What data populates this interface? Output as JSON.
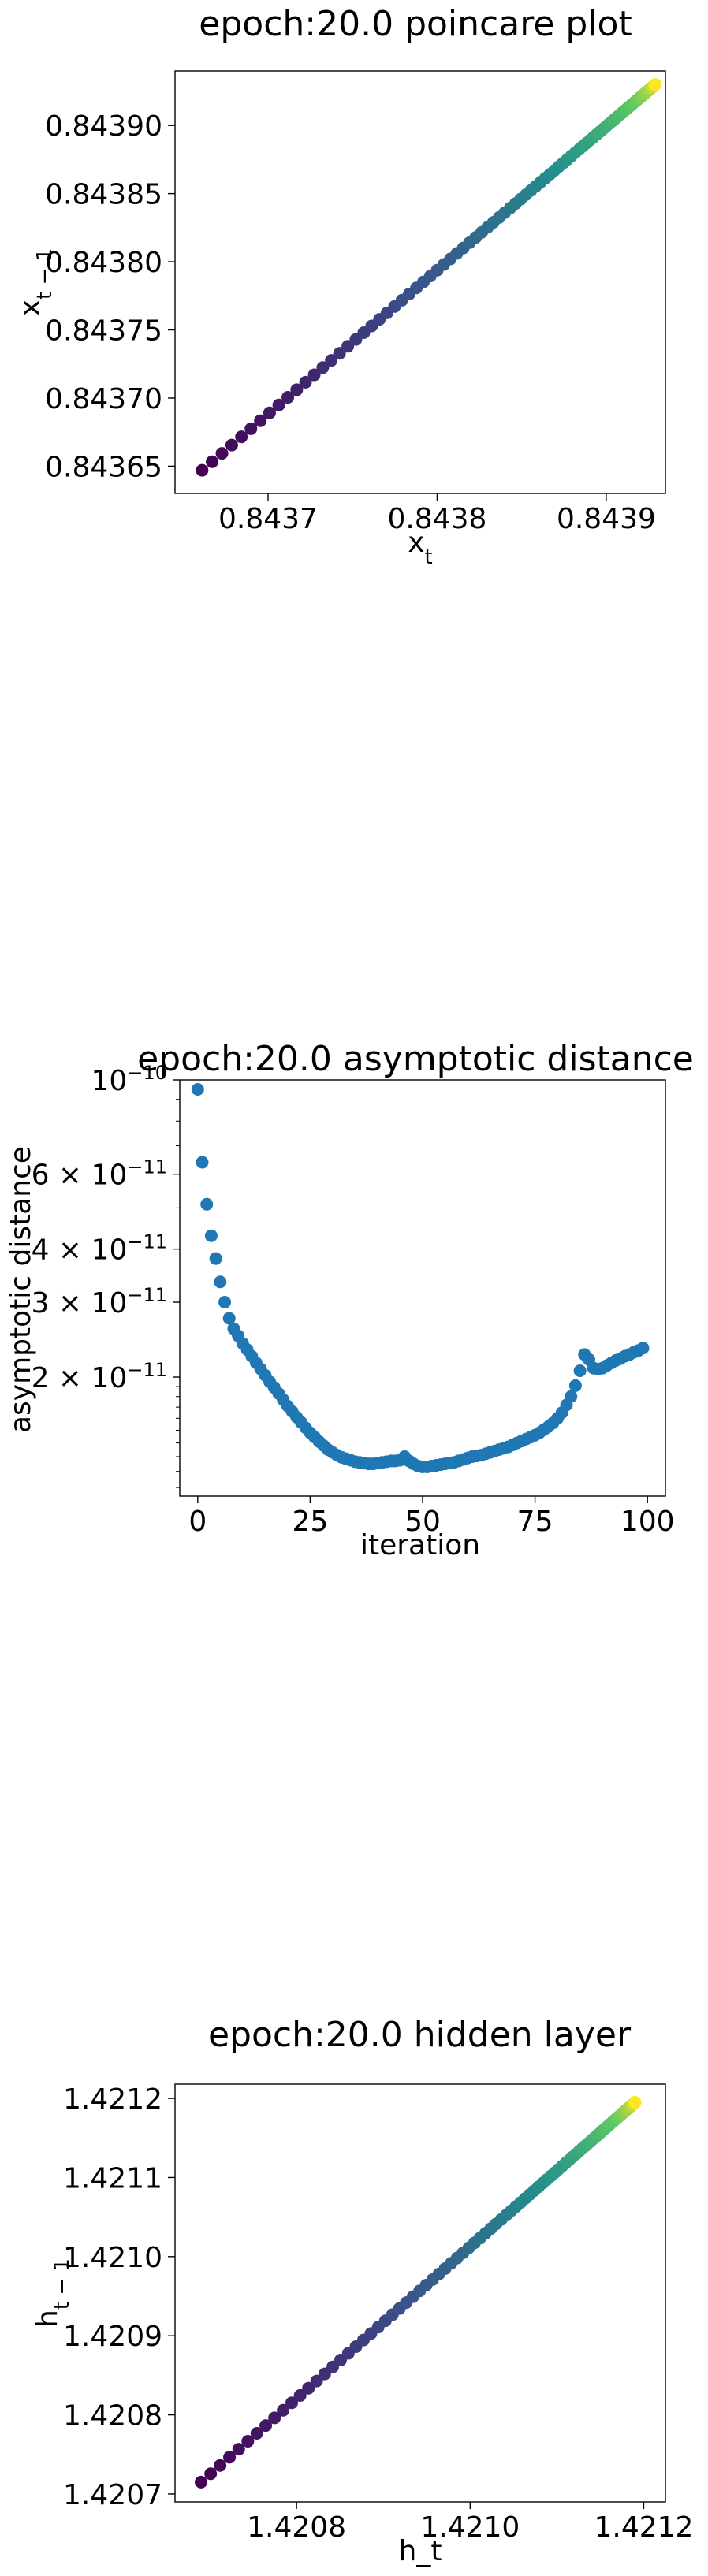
{
  "chart_data": [
    {
      "type": "scatter",
      "title": "epoch:20.0 poincare plot",
      "xlabel": "x_t",
      "ylabel": "x_{t-1}",
      "xlim": [
        0.843645,
        0.843935
      ],
      "ylim": [
        0.84363,
        0.84394
      ],
      "xticks": [
        {
          "value": 0.8437,
          "label": "0.8437"
        },
        {
          "value": 0.8438,
          "label": "0.8438"
        },
        {
          "value": 0.8439,
          "label": "0.8439"
        }
      ],
      "yticks": [
        {
          "value": 0.84365,
          "label": "0.84365"
        },
        {
          "value": 0.8437,
          "label": "0.84370"
        },
        {
          "value": 0.84375,
          "label": "0.84375"
        },
        {
          "value": 0.8438,
          "label": "0.84380"
        },
        {
          "value": 0.84385,
          "label": "0.84385"
        },
        {
          "value": 0.8439,
          "label": "0.84390"
        }
      ],
      "series": [
        {
          "x_start": 0.843661,
          "x_end": 0.843929,
          "y_start": 0.843647,
          "y_end": 0.84393,
          "points": 100,
          "curve_exponent": 2.2,
          "colormap": [
            "#440154",
            "#3b528b",
            "#21908d",
            "#5dc863",
            "#fde725"
          ]
        }
      ],
      "grid": false
    },
    {
      "type": "scatter",
      "title": "epoch:20.0 asymptotic distance",
      "xlabel": "iteration",
      "ylabel": "asymptotic distance",
      "xlim": [
        -4,
        104
      ],
      "ylim": [
        1.05e-11,
        1e-10
      ],
      "yscale": "log",
      "xticks": [
        {
          "value": 0,
          "label": "0"
        },
        {
          "value": 25,
          "label": "25"
        },
        {
          "value": 50,
          "label": "50"
        },
        {
          "value": 75,
          "label": "75"
        },
        {
          "value": 100,
          "label": "100"
        }
      ],
      "yticks": [
        {
          "value": 2e-11,
          "base": "2 × 10",
          "exp": "−11"
        },
        {
          "value": 3e-11,
          "base": "3 × 10",
          "exp": "−11"
        },
        {
          "value": 4e-11,
          "base": "4 × 10",
          "exp": "−11"
        },
        {
          "value": 6e-11,
          "base": "6 × 10",
          "exp": "−11"
        },
        {
          "value": 1e-10,
          "base": "10",
          "exp": "−10"
        }
      ],
      "series": [
        {
          "color": "#1f77b4",
          "x": [
            0,
            1,
            2,
            3,
            4,
            5,
            6,
            7,
            8,
            9,
            10,
            11,
            12,
            13,
            14,
            15,
            16,
            17,
            18,
            19,
            20,
            21,
            22,
            23,
            24,
            25,
            26,
            27,
            28,
            29,
            30,
            31,
            32,
            33,
            34,
            35,
            36,
            37,
            38,
            39,
            40,
            41,
            42,
            43,
            44,
            45,
            46,
            47,
            48,
            49,
            50,
            51,
            52,
            53,
            54,
            55,
            56,
            57,
            58,
            59,
            60,
            61,
            62,
            63,
            64,
            65,
            66,
            67,
            68,
            69,
            70,
            71,
            72,
            73,
            74,
            75,
            76,
            77,
            78,
            79,
            80,
            81,
            82,
            83,
            84,
            85,
            86,
            87,
            88,
            89,
            90,
            91,
            92,
            93,
            94,
            95,
            96,
            97,
            98,
            99
          ],
          "y": [
            9.5e-11,
            6.4e-11,
            5.1e-11,
            4.3e-11,
            3.8e-11,
            3.35e-11,
            3e-11,
            2.75e-11,
            2.6e-11,
            2.5e-11,
            2.4e-11,
            2.32e-11,
            2.24e-11,
            2.16e-11,
            2.09e-11,
            2.02e-11,
            1.95e-11,
            1.89e-11,
            1.83e-11,
            1.77e-11,
            1.71e-11,
            1.66e-11,
            1.61e-11,
            1.565e-11,
            1.52e-11,
            1.48e-11,
            1.445e-11,
            1.41e-11,
            1.38e-11,
            1.35e-11,
            1.33e-11,
            1.31e-11,
            1.295e-11,
            1.285e-11,
            1.275e-11,
            1.265e-11,
            1.26e-11,
            1.255e-11,
            1.25e-11,
            1.25e-11,
            1.255e-11,
            1.26e-11,
            1.265e-11,
            1.27e-11,
            1.27e-11,
            1.275e-11,
            1.3e-11,
            1.27e-11,
            1.25e-11,
            1.235e-11,
            1.23e-11,
            1.23e-11,
            1.235e-11,
            1.24e-11,
            1.245e-11,
            1.25e-11,
            1.255e-11,
            1.26e-11,
            1.27e-11,
            1.28e-11,
            1.29e-11,
            1.3e-11,
            1.305e-11,
            1.31e-11,
            1.32e-11,
            1.33e-11,
            1.34e-11,
            1.35e-11,
            1.36e-11,
            1.37e-11,
            1.385e-11,
            1.4e-11,
            1.415e-11,
            1.43e-11,
            1.445e-11,
            1.46e-11,
            1.48e-11,
            1.505e-11,
            1.53e-11,
            1.56e-11,
            1.6e-11,
            1.65e-11,
            1.72e-11,
            1.8e-11,
            1.91e-11,
            2.07e-11,
            2.26e-11,
            2.2e-11,
            2.1e-11,
            2.09e-11,
            2.1e-11,
            2.13e-11,
            2.16e-11,
            2.19e-11,
            2.21e-11,
            2.24e-11,
            2.26e-11,
            2.29e-11,
            2.31e-11,
            2.34e-11
          ]
        }
      ],
      "grid": false
    },
    {
      "type": "scatter",
      "title": "epoch:20.0 hidden layer",
      "xlabel": "h_t",
      "ylabel": "h_{t-1}",
      "xlim": [
        1.42066,
        1.421225
      ],
      "ylim": [
        1.42069,
        1.421218
      ],
      "xticks": [
        {
          "value": 1.4208,
          "label": "1.4208"
        },
        {
          "value": 1.421,
          "label": "1.4210"
        },
        {
          "value": 1.4212,
          "label": "1.4212"
        }
      ],
      "yticks": [
        {
          "value": 1.4207,
          "label": "1.4207"
        },
        {
          "value": 1.4208,
          "label": "1.4208"
        },
        {
          "value": 1.4209,
          "label": "1.4209"
        },
        {
          "value": 1.421,
          "label": "1.4210"
        },
        {
          "value": 1.4211,
          "label": "1.4211"
        },
        {
          "value": 1.4212,
          "label": "1.4212"
        }
      ],
      "series": [
        {
          "x_start": 1.42069,
          "x_end": 1.42119,
          "y_start": 1.420715,
          "y_end": 1.421195,
          "points": 100,
          "curve_exponent": 2.2,
          "colormap": [
            "#440154",
            "#3b528b",
            "#21908d",
            "#5dc863",
            "#fde725"
          ]
        }
      ],
      "grid": false
    }
  ]
}
